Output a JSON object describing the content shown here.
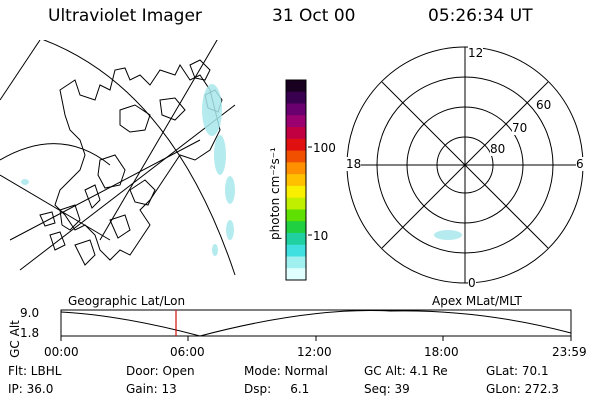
{
  "header": {
    "instrument": "Ultraviolet Imager",
    "date": "31 Oct 00",
    "time": "05:26:34 UT"
  },
  "colorbar": {
    "unit_label": "photon cm⁻²s⁻¹",
    "ticks": [
      "100",
      "10"
    ],
    "colors": [
      "#1a0020",
      "#3a0050",
      "#6a0070",
      "#9a0070",
      "#c00040",
      "#e01010",
      "#f05000",
      "#ff9000",
      "#ffc000",
      "#f8f000",
      "#c0f000",
      "#60e000",
      "#20d040",
      "#20d0a0",
      "#40e0e0",
      "#a0f0f0",
      "#e0ffff"
    ]
  },
  "polar": {
    "mlt_labels": {
      "top": "12",
      "left": "18",
      "right": "6",
      "bottom": "0"
    },
    "lat_labels": [
      "60",
      "70",
      "80"
    ]
  },
  "timeline": {
    "y_axis_title": "GC Alt",
    "y_ticks": [
      "9.0",
      "1.8"
    ],
    "left_label": "Geographic Lat/Lon",
    "right_label": "Apex  MLat/MLT",
    "x_ticks": [
      "00:00",
      "06:00",
      "12:00",
      "18:00",
      "23:59"
    ],
    "marker_color": "#d01010"
  },
  "info": {
    "row1": {
      "flt": "Flt: LBHL",
      "door": "Door: Open",
      "mode": "Mode: Normal",
      "gcalt": "GC Alt: 4.1 Re",
      "glat": "GLat:  70.1"
    },
    "row2": {
      "ip": "IP: 36.0",
      "gain": "Gain: 13",
      "dsp": "Dsp:     6.1",
      "seq": "Seq: 39",
      "glon": "GLon: 272.3"
    }
  }
}
